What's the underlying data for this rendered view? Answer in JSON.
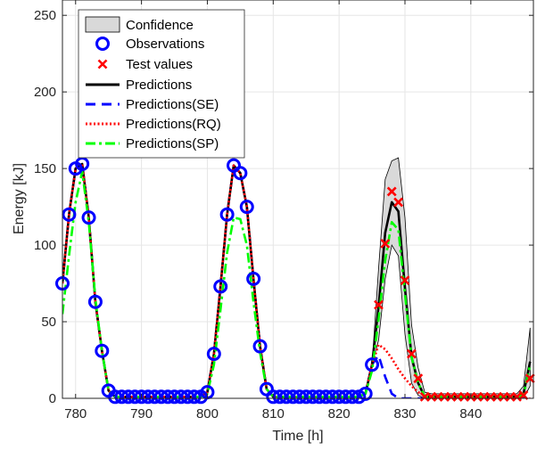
{
  "chart_data": {
    "type": "line",
    "xlabel": "Time [h]",
    "ylabel": "Energy [kJ]",
    "xlim": [
      778,
      849.5
    ],
    "ylim": [
      0,
      260
    ],
    "xticks": [
      780,
      790,
      800,
      810,
      820,
      830,
      840
    ],
    "yticks": [
      0,
      50,
      100,
      150,
      200,
      250
    ],
    "grid": true,
    "legend_position": "top-left",
    "legend": [
      "Confidence",
      "Observations",
      "Test values",
      "Predictions",
      "Predictions(SE)",
      "Predictions(RQ)",
      "Predictions(SP)"
    ],
    "colors": {
      "confidence_fill": "#d9d9d9",
      "observations": "#0000ff",
      "test_values": "#ff0000",
      "predictions": "#000000",
      "predictions_se": "#0000ff",
      "predictions_rq": "#ff0000",
      "predictions_sp": "#00ff00"
    },
    "observations": {
      "x": [
        778,
        779,
        780,
        781,
        782,
        783,
        784,
        785,
        786,
        787,
        788,
        789,
        790,
        791,
        792,
        793,
        794,
        795,
        796,
        797,
        798,
        799,
        800,
        801,
        802,
        803,
        804,
        805,
        806,
        807,
        808,
        809,
        810,
        811,
        812,
        813,
        814,
        815,
        816,
        817,
        818,
        819,
        820,
        821,
        822,
        823,
        824,
        825
      ],
      "y": [
        75,
        120,
        150,
        153,
        118,
        63,
        31,
        5,
        1,
        1,
        1,
        1,
        1,
        1,
        1,
        1,
        1,
        1,
        1,
        1,
        1,
        1,
        4,
        29,
        73,
        120,
        152,
        147,
        125,
        78,
        34,
        6,
        1,
        1,
        1,
        1,
        1,
        1,
        1,
        1,
        1,
        1,
        1,
        1,
        1,
        1,
        3,
        22
      ]
    },
    "test_values": {
      "x": [
        826,
        827,
        828,
        829,
        830,
        831,
        832,
        833,
        834,
        835,
        836,
        837,
        838,
        839,
        840,
        841,
        842,
        843,
        844,
        845,
        846,
        847,
        848,
        849
      ],
      "y": [
        61,
        101,
        135,
        128,
        77,
        29,
        13,
        1,
        1,
        1,
        1,
        1,
        1,
        1,
        1,
        1,
        1,
        1,
        1,
        1,
        1,
        1,
        2,
        13
      ]
    },
    "series": [
      {
        "name": "Predictions",
        "x": [
          778,
          779,
          780,
          781,
          782,
          783,
          784,
          785,
          786,
          787,
          788,
          789,
          790,
          791,
          792,
          793,
          794,
          795,
          796,
          797,
          798,
          799,
          800,
          801,
          802,
          803,
          804,
          805,
          806,
          807,
          808,
          809,
          810,
          811,
          812,
          813,
          814,
          815,
          816,
          817,
          818,
          819,
          820,
          821,
          822,
          823,
          824,
          825,
          826,
          827,
          828,
          829,
          830,
          831,
          832,
          833,
          834,
          835,
          836,
          837,
          838,
          839,
          840,
          841,
          842,
          843,
          844,
          845,
          846,
          847,
          848,
          849
        ],
        "y": [
          75,
          120,
          150,
          153,
          118,
          63,
          31,
          5,
          1,
          1,
          1,
          1,
          1,
          1,
          1,
          1,
          1,
          1,
          1,
          1,
          1,
          1,
          4,
          29,
          73,
          120,
          152,
          147,
          125,
          78,
          34,
          6,
          1,
          1,
          1,
          1,
          1,
          1,
          1,
          1,
          1,
          1,
          1,
          1,
          1,
          1,
          3,
          22,
          60,
          108,
          128,
          122,
          72,
          27,
          10,
          1,
          1,
          1,
          1,
          1,
          1,
          1,
          1,
          1,
          1,
          1,
          1,
          1,
          1,
          1,
          3,
          24
        ]
      },
      {
        "name": "Predictions(SE)",
        "x": [
          778,
          779,
          780,
          781,
          782,
          783,
          784,
          785,
          786,
          787,
          788,
          789,
          790,
          791,
          792,
          793,
          794,
          795,
          796,
          797,
          798,
          799,
          800,
          801,
          802,
          803,
          804,
          805,
          806,
          807,
          808,
          809,
          810,
          811,
          812,
          813,
          814,
          815,
          816,
          817,
          818,
          819,
          820,
          821,
          822,
          823,
          824,
          825,
          826,
          827,
          828,
          829,
          830,
          831,
          832,
          833,
          834,
          835,
          836,
          837,
          838,
          839,
          840,
          841,
          842,
          843,
          844,
          845,
          846,
          847,
          848,
          849
        ],
        "y": [
          75,
          120,
          150,
          153,
          118,
          63,
          31,
          5,
          1,
          1,
          1,
          1,
          1,
          1,
          1,
          1,
          1,
          1,
          1,
          1,
          1,
          1,
          4,
          29,
          73,
          120,
          152,
          147,
          125,
          78,
          34,
          6,
          1,
          1,
          1,
          1,
          1,
          1,
          1,
          1,
          1,
          1,
          1,
          1,
          1,
          1,
          3,
          22,
          28,
          14,
          3,
          0,
          0,
          0,
          0,
          0,
          0,
          0,
          0,
          0,
          0,
          0,
          0,
          0,
          0,
          0,
          0,
          0,
          0,
          0,
          0,
          0
        ]
      },
      {
        "name": "Predictions(RQ)",
        "x": [
          778,
          779,
          780,
          781,
          782,
          783,
          784,
          785,
          786,
          787,
          788,
          789,
          790,
          791,
          792,
          793,
          794,
          795,
          796,
          797,
          798,
          799,
          800,
          801,
          802,
          803,
          804,
          805,
          806,
          807,
          808,
          809,
          810,
          811,
          812,
          813,
          814,
          815,
          816,
          817,
          818,
          819,
          820,
          821,
          822,
          823,
          824,
          825,
          826,
          827,
          828,
          829,
          830,
          831,
          832,
          833,
          834,
          835,
          836,
          837,
          838,
          839,
          840,
          841,
          842,
          843,
          844,
          845,
          846,
          847,
          848,
          849
        ],
        "y": [
          75,
          120,
          150,
          153,
          118,
          63,
          31,
          5,
          1,
          1,
          1,
          1,
          1,
          1,
          1,
          1,
          1,
          1,
          1,
          1,
          1,
          1,
          4,
          29,
          73,
          120,
          152,
          147,
          125,
          78,
          34,
          6,
          1,
          1,
          1,
          1,
          1,
          1,
          1,
          1,
          1,
          1,
          1,
          1,
          1,
          1,
          3,
          22,
          35,
          32,
          26,
          19,
          13,
          8,
          4,
          2,
          1,
          0,
          0,
          0,
          0,
          0,
          0,
          0,
          0,
          0,
          0,
          0,
          0,
          0,
          0,
          0
        ]
      },
      {
        "name": "Predictions(SP)",
        "x": [
          778,
          779,
          780,
          781,
          782,
          783,
          784,
          785,
          786,
          787,
          788,
          789,
          790,
          791,
          792,
          793,
          794,
          795,
          796,
          797,
          798,
          799,
          800,
          801,
          802,
          803,
          804,
          805,
          806,
          807,
          808,
          809,
          810,
          811,
          812,
          813,
          814,
          815,
          816,
          817,
          818,
          819,
          820,
          821,
          822,
          823,
          824,
          825,
          826,
          827,
          828,
          829,
          830,
          831,
          832,
          833,
          834,
          835,
          836,
          837,
          838,
          839,
          840,
          841,
          842,
          843,
          844,
          845,
          846,
          847,
          848,
          849
        ],
        "y": [
          55,
          93,
          128,
          148,
          115,
          65,
          31,
          5,
          1,
          1,
          1,
          1,
          1,
          1,
          1,
          1,
          1,
          1,
          1,
          1,
          1,
          1,
          3,
          22,
          58,
          95,
          118,
          117,
          100,
          63,
          30,
          6,
          1,
          1,
          1,
          1,
          1,
          1,
          1,
          1,
          1,
          1,
          1,
          1,
          1,
          1,
          3,
          18,
          52,
          90,
          115,
          110,
          68,
          27,
          10,
          1,
          1,
          1,
          1,
          1,
          1,
          1,
          1,
          1,
          1,
          1,
          1,
          1,
          1,
          1,
          2,
          22
        ]
      }
    ],
    "confidence_band": {
      "x": [
        778,
        779,
        780,
        781,
        782,
        783,
        784,
        785,
        786,
        787,
        788,
        789,
        790,
        791,
        792,
        793,
        794,
        795,
        796,
        797,
        798,
        799,
        800,
        801,
        802,
        803,
        804,
        805,
        806,
        807,
        808,
        809,
        810,
        811,
        812,
        813,
        814,
        815,
        816,
        817,
        818,
        819,
        820,
        821,
        822,
        823,
        824,
        825,
        826,
        827,
        828,
        829,
        830,
        831,
        832,
        833,
        834,
        835,
        836,
        837,
        838,
        839,
        840,
        841,
        842,
        843,
        844,
        845,
        846,
        847,
        848,
        849
      ],
      "upper": [
        75,
        120,
        150,
        153,
        118,
        63,
        31,
        5,
        1,
        1,
        1,
        1,
        1,
        1,
        1,
        1,
        1,
        1,
        1,
        1,
        1,
        1,
        4,
        29,
        73,
        120,
        152,
        147,
        125,
        78,
        34,
        6,
        1,
        1,
        1,
        1,
        1,
        1,
        1,
        1,
        1,
        1,
        1,
        1,
        1,
        1,
        3,
        22,
        85,
        143,
        155,
        157,
        118,
        48,
        20,
        4,
        3,
        3,
        3,
        3,
        3,
        3,
        3,
        3,
        3,
        3,
        3,
        3,
        3,
        3,
        8,
        46
      ],
      "lower": [
        75,
        120,
        150,
        153,
        118,
        63,
        31,
        5,
        1,
        1,
        1,
        1,
        1,
        1,
        1,
        1,
        1,
        1,
        1,
        1,
        1,
        1,
        4,
        29,
        73,
        120,
        152,
        147,
        125,
        78,
        34,
        6,
        1,
        1,
        1,
        1,
        1,
        1,
        1,
        1,
        1,
        1,
        1,
        1,
        1,
        1,
        3,
        22,
        38,
        78,
        100,
        93,
        42,
        10,
        2,
        0,
        0,
        0,
        0,
        0,
        0,
        0,
        0,
        0,
        0,
        0,
        0,
        0,
        0,
        0,
        0,
        8
      ]
    }
  }
}
